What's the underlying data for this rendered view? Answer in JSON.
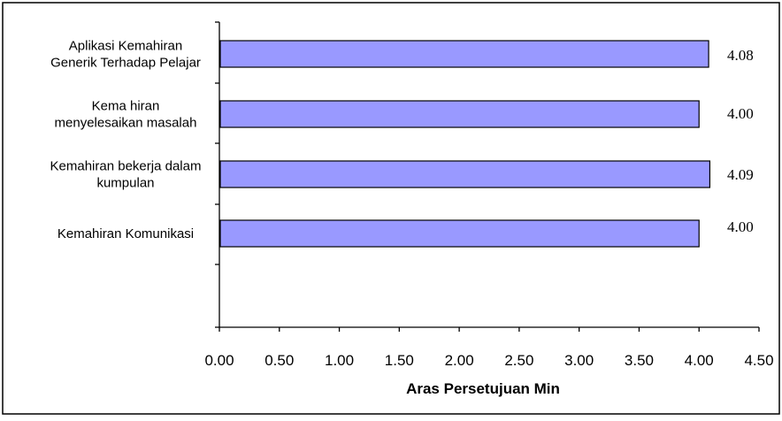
{
  "chart_data": {
    "type": "bar",
    "orientation": "horizontal",
    "categories": [
      [
        "Aplikasi Kemahiran",
        "Generik Terhadap Pelajar"
      ],
      [
        "Kema hiran",
        "menyelesaikan masalah"
      ],
      [
        "Kemahiran bekerja dalam",
        "kumpulan"
      ],
      [
        "Kemahiran Komunikasi"
      ]
    ],
    "values": [
      4.08,
      4.0,
      4.09,
      4.0
    ],
    "data_labels": [
      "4.08",
      "4.00",
      "4.09",
      "4.00"
    ],
    "xlabel": "Aras Persetujuan Min",
    "xlim": [
      0,
      4.5
    ],
    "xticks": [
      "0.00",
      "0.50",
      "1.00",
      "1.50",
      "2.00",
      "2.50",
      "3.00",
      "3.50",
      "4.00",
      "4.50"
    ],
    "grid": false,
    "legend": "none",
    "colors": {
      "bar_fill": "#9999ff",
      "bar_stroke": "#000000",
      "frame": "#000000"
    }
  }
}
